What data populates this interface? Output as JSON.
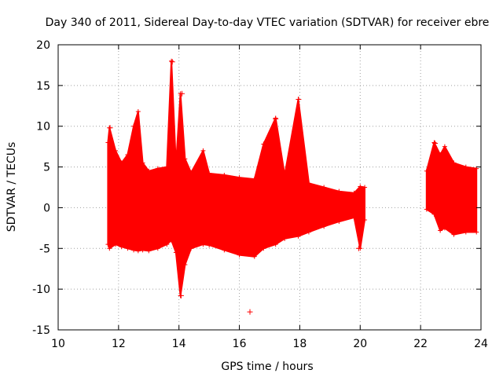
{
  "chart_data": {
    "type": "scatter",
    "title": "Day 340 of 2011, Sidereal Day-to-day VTEC variation (SDTVAR) for receiver ebre",
    "xlabel": "GPS time / hours",
    "ylabel": "SDTVAR / TECUs",
    "xlim": [
      10,
      24
    ],
    "ylim": [
      -15,
      20
    ],
    "xticks": [
      10,
      12,
      14,
      16,
      18,
      20,
      22,
      24
    ],
    "yticks": [
      -15,
      -10,
      -5,
      0,
      5,
      10,
      15,
      20
    ],
    "xtick_labels": [
      "10",
      "12",
      "14",
      "16",
      "18",
      "20",
      "22",
      "24"
    ],
    "ytick_labels": [
      "-15",
      "-10",
      "-5",
      "0",
      "5",
      "10",
      "15",
      "20"
    ],
    "grid": true,
    "marker": "+",
    "series_color": "#ff0000",
    "series": [
      {
        "name": "SDTVAR",
        "envelope": [
          {
            "x": 11.65,
            "upper": 8.0,
            "lower": -4.5
          },
          {
            "x": 11.7,
            "upper": 9.8,
            "lower": -5.0
          },
          {
            "x": 11.9,
            "upper": 7.0,
            "lower": -4.5
          },
          {
            "x": 12.1,
            "upper": 5.5,
            "lower": -4.8
          },
          {
            "x": 12.3,
            "upper": 6.5,
            "lower": -5.0
          },
          {
            "x": 12.5,
            "upper": 10.0,
            "lower": -5.2
          },
          {
            "x": 12.65,
            "upper": 11.8,
            "lower": -5.3
          },
          {
            "x": 12.8,
            "upper": 5.5,
            "lower": -5.2
          },
          {
            "x": 13.0,
            "upper": 4.5,
            "lower": -5.3
          },
          {
            "x": 13.3,
            "upper": 4.8,
            "lower": -5.0
          },
          {
            "x": 13.6,
            "upper": 5.0,
            "lower": -4.5
          },
          {
            "x": 13.75,
            "upper": 18.0,
            "lower": -4.0
          },
          {
            "x": 13.9,
            "upper": 5.2,
            "lower": -5.5
          },
          {
            "x": 14.05,
            "upper": 14.0,
            "lower": -10.8
          },
          {
            "x": 14.2,
            "upper": 6.0,
            "lower": -7.0
          },
          {
            "x": 14.4,
            "upper": 4.3,
            "lower": -5.0
          },
          {
            "x": 14.8,
            "upper": 7.0,
            "lower": -4.5
          },
          {
            "x": 15.0,
            "upper": 4.2,
            "lower": -4.6
          },
          {
            "x": 15.5,
            "upper": 4.0,
            "lower": -5.2
          },
          {
            "x": 16.0,
            "upper": 3.7,
            "lower": -5.8
          },
          {
            "x": 16.5,
            "upper": 3.5,
            "lower": -6.0
          },
          {
            "x": 16.8,
            "upper": 7.8,
            "lower": -5.0
          },
          {
            "x": 17.2,
            "upper": 11.0,
            "lower": -4.5
          },
          {
            "x": 17.5,
            "upper": 4.0,
            "lower": -3.8
          },
          {
            "x": 17.95,
            "upper": 13.3,
            "lower": -3.5
          },
          {
            "x": 18.3,
            "upper": 3.0,
            "lower": -3.0
          },
          {
            "x": 18.8,
            "upper": 2.5,
            "lower": -2.3
          },
          {
            "x": 19.3,
            "upper": 2.0,
            "lower": -1.7
          },
          {
            "x": 19.8,
            "upper": 1.8,
            "lower": -1.2
          },
          {
            "x": 20.0,
            "upper": 2.6,
            "lower": -5.0
          },
          {
            "x": 20.15,
            "upper": 2.5,
            "lower": -1.5
          },
          {
            "x": 22.2,
            "upper": 4.5,
            "lower": -0.2
          },
          {
            "x": 22.45,
            "upper": 8.0,
            "lower": -0.8
          },
          {
            "x": 22.65,
            "upper": 6.5,
            "lower": -2.8
          },
          {
            "x": 22.8,
            "upper": 7.5,
            "lower": -2.5
          },
          {
            "x": 23.1,
            "upper": 5.5,
            "lower": -3.3
          },
          {
            "x": 23.5,
            "upper": 5.0,
            "lower": -3.0
          },
          {
            "x": 23.85,
            "upper": 4.8,
            "lower": -3.0
          }
        ],
        "outliers": [
          {
            "x": 16.35,
            "y": -12.8
          },
          {
            "x": 13.78,
            "y": 17.9
          },
          {
            "x": 14.07,
            "y": -10.8
          },
          {
            "x": 11.72,
            "y": 9.8
          },
          {
            "x": 17.96,
            "y": 13.3
          },
          {
            "x": 14.1,
            "y": 14.0
          },
          {
            "x": 17.2,
            "y": 10.9
          },
          {
            "x": 16.82,
            "y": 7.8
          },
          {
            "x": 22.48,
            "y": 7.9
          },
          {
            "x": 19.95,
            "y": -5.0
          }
        ]
      }
    ]
  }
}
